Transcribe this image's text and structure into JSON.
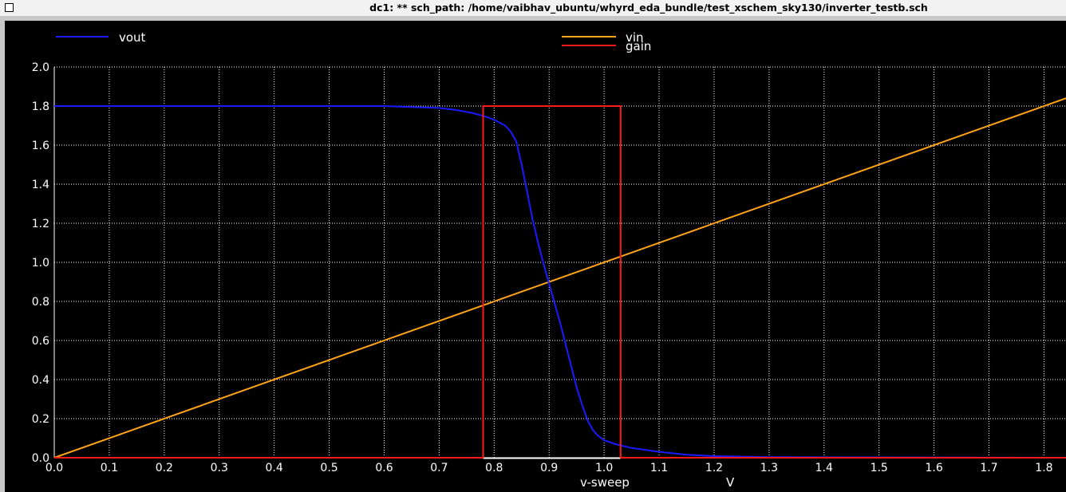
{
  "window": {
    "title": "dc1: ** sch_path: /home/vaibhav_ubuntu/whyrd_eda_bundle/test_xschem_sky130/inverter_testb.sch"
  },
  "colors": {
    "background": "#000000",
    "grid": "#ffffff",
    "vout": "#1a1aff",
    "vin": "#ffa31a",
    "gain": "#ff1a1a"
  },
  "chart_data": {
    "type": "line",
    "title": "",
    "xlabel": "v-sweep",
    "x_unit": "V",
    "ylabel": "",
    "xlim": [
      0,
      1.84
    ],
    "ylim": [
      0,
      2.0
    ],
    "x_ticks": [
      "0.0",
      "0.1",
      "0.2",
      "0.3",
      "0.4",
      "0.5",
      "0.6",
      "0.7",
      "0.8",
      "0.9",
      "1.0",
      "1.1",
      "1.2",
      "1.3",
      "1.4",
      "1.5",
      "1.6",
      "1.7",
      "1.8"
    ],
    "y_ticks": [
      "0.0",
      "0.2",
      "0.4",
      "0.6",
      "0.8",
      "1.0",
      "1.2",
      "1.4",
      "1.6",
      "1.8",
      "2.0"
    ],
    "grid": true,
    "legend": [
      "vout",
      "vin",
      "gain"
    ],
    "series": [
      {
        "name": "vout",
        "color": "#1a1aff",
        "x": [
          0,
          0.5,
          0.6,
          0.65,
          0.7,
          0.73,
          0.76,
          0.78,
          0.8,
          0.82,
          0.83,
          0.84,
          0.85,
          0.86,
          0.87,
          0.88,
          0.89,
          0.9,
          0.91,
          0.92,
          0.93,
          0.94,
          0.95,
          0.96,
          0.97,
          0.98,
          0.99,
          1.0,
          1.02,
          1.05,
          1.1,
          1.15,
          1.2,
          1.3,
          1.84
        ],
        "y": [
          1.8,
          1.8,
          1.8,
          1.795,
          1.79,
          1.78,
          1.765,
          1.75,
          1.73,
          1.7,
          1.67,
          1.62,
          1.5,
          1.36,
          1.22,
          1.1,
          0.99,
          0.89,
          0.79,
          0.69,
          0.58,
          0.47,
          0.36,
          0.27,
          0.19,
          0.14,
          0.11,
          0.09,
          0.07,
          0.05,
          0.03,
          0.015,
          0.008,
          0.003,
          0.0
        ]
      },
      {
        "name": "vin",
        "color": "#ffa31a",
        "x": [
          0,
          1.84
        ],
        "y": [
          0,
          1.84
        ]
      },
      {
        "name": "gain",
        "color": "#ff1a1a",
        "x": [
          0,
          0.78,
          0.78,
          1.03,
          1.03,
          1.84
        ],
        "y": [
          0,
          0,
          1.8,
          1.8,
          0,
          0
        ]
      }
    ]
  }
}
